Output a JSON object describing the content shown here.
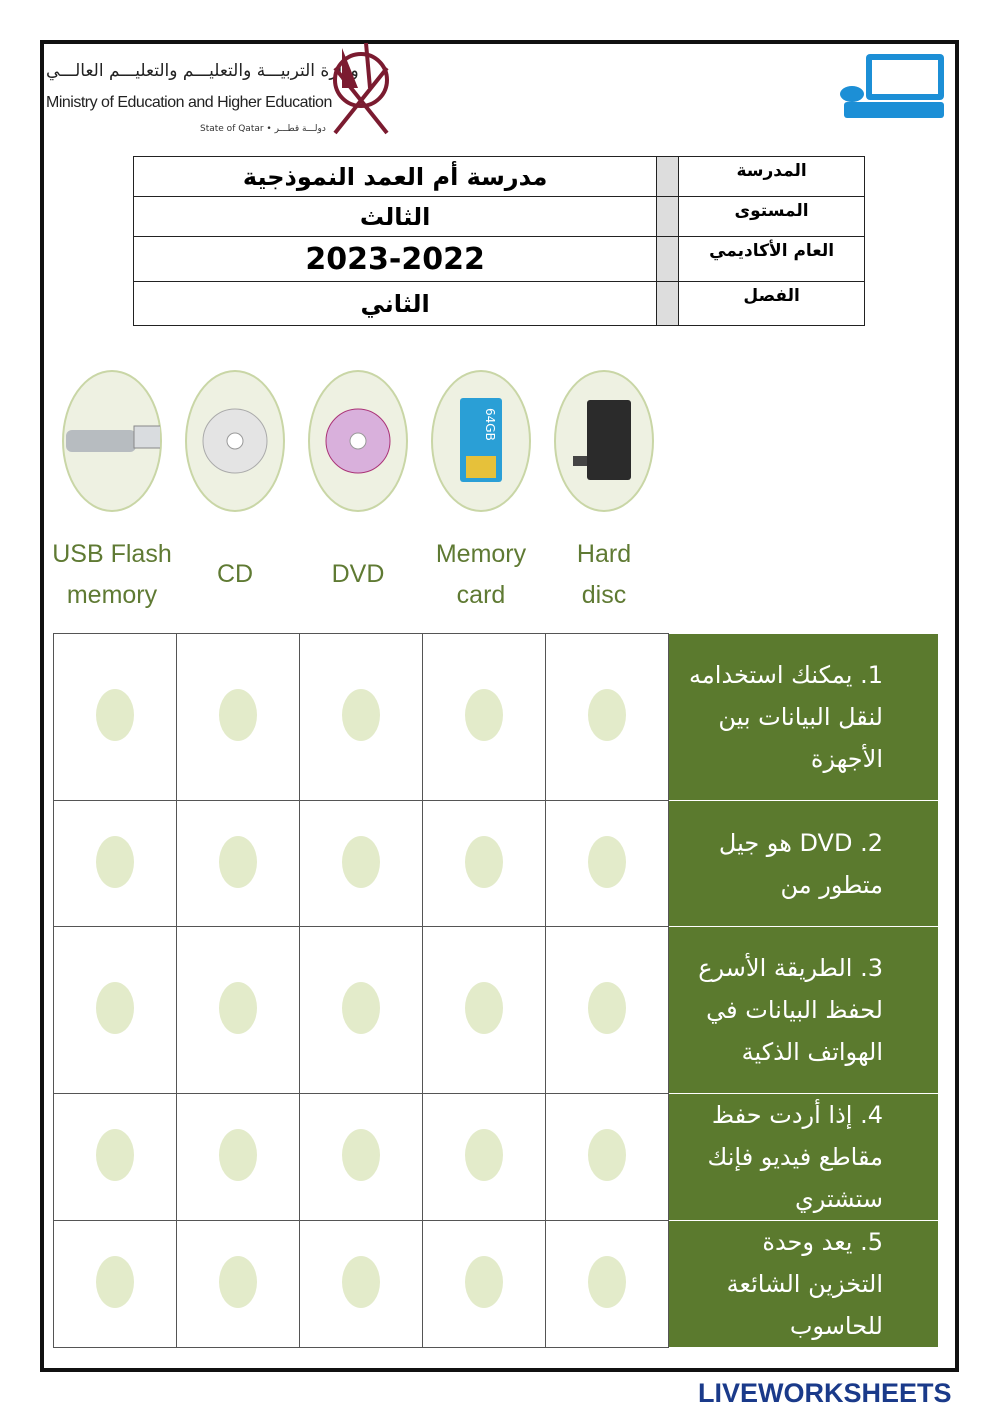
{
  "header": {
    "ministry_ar": "وزارة التربيـــة والتعليـــم والتعليـــم العالـــي",
    "ministry_en": "Ministry of Education and Higher Education",
    "state": "State of Qatar • دولـــة قطـــر",
    "rows": [
      {
        "label": "المدرسة",
        "value": "مدرسة أم العمد النموذجية"
      },
      {
        "label": "المستوى",
        "value": "الثالث"
      },
      {
        "label": "العام الأكاديمي",
        "value": "2023-2022"
      },
      {
        "label": "الفصل",
        "value": "الثاني"
      }
    ]
  },
  "devices": [
    {
      "icon": "usb-flash-icon",
      "label": "USB Flash memory"
    },
    {
      "icon": "cd-icon",
      "label": "CD"
    },
    {
      "icon": "dvd-icon",
      "label": "DVD"
    },
    {
      "icon": "memory-card-icon",
      "label": "Memory card",
      "card_text": "64GB"
    },
    {
      "icon": "hard-disk-icon",
      "label": "Hard disc"
    }
  ],
  "questions": [
    "1. يمكنك استخدامه لنقل البيانات بين الأجهزة",
    "2. DVD هو جيل متطور من",
    "3. الطريقة الأسرع لحفظ البيانات في الهواتف الذكية",
    "4. إذا أردت حفظ مقاطع فيديو فإنك ستشتري",
    "5. يعد وحدة التخزين الشائعة للحاسوب"
  ],
  "footer": {
    "brand": "LIVEWORKSHEETS"
  },
  "colors": {
    "question_bg": "#5b7a2e",
    "answer_dot": "#e3ebca",
    "device_label": "#5f7a33"
  }
}
